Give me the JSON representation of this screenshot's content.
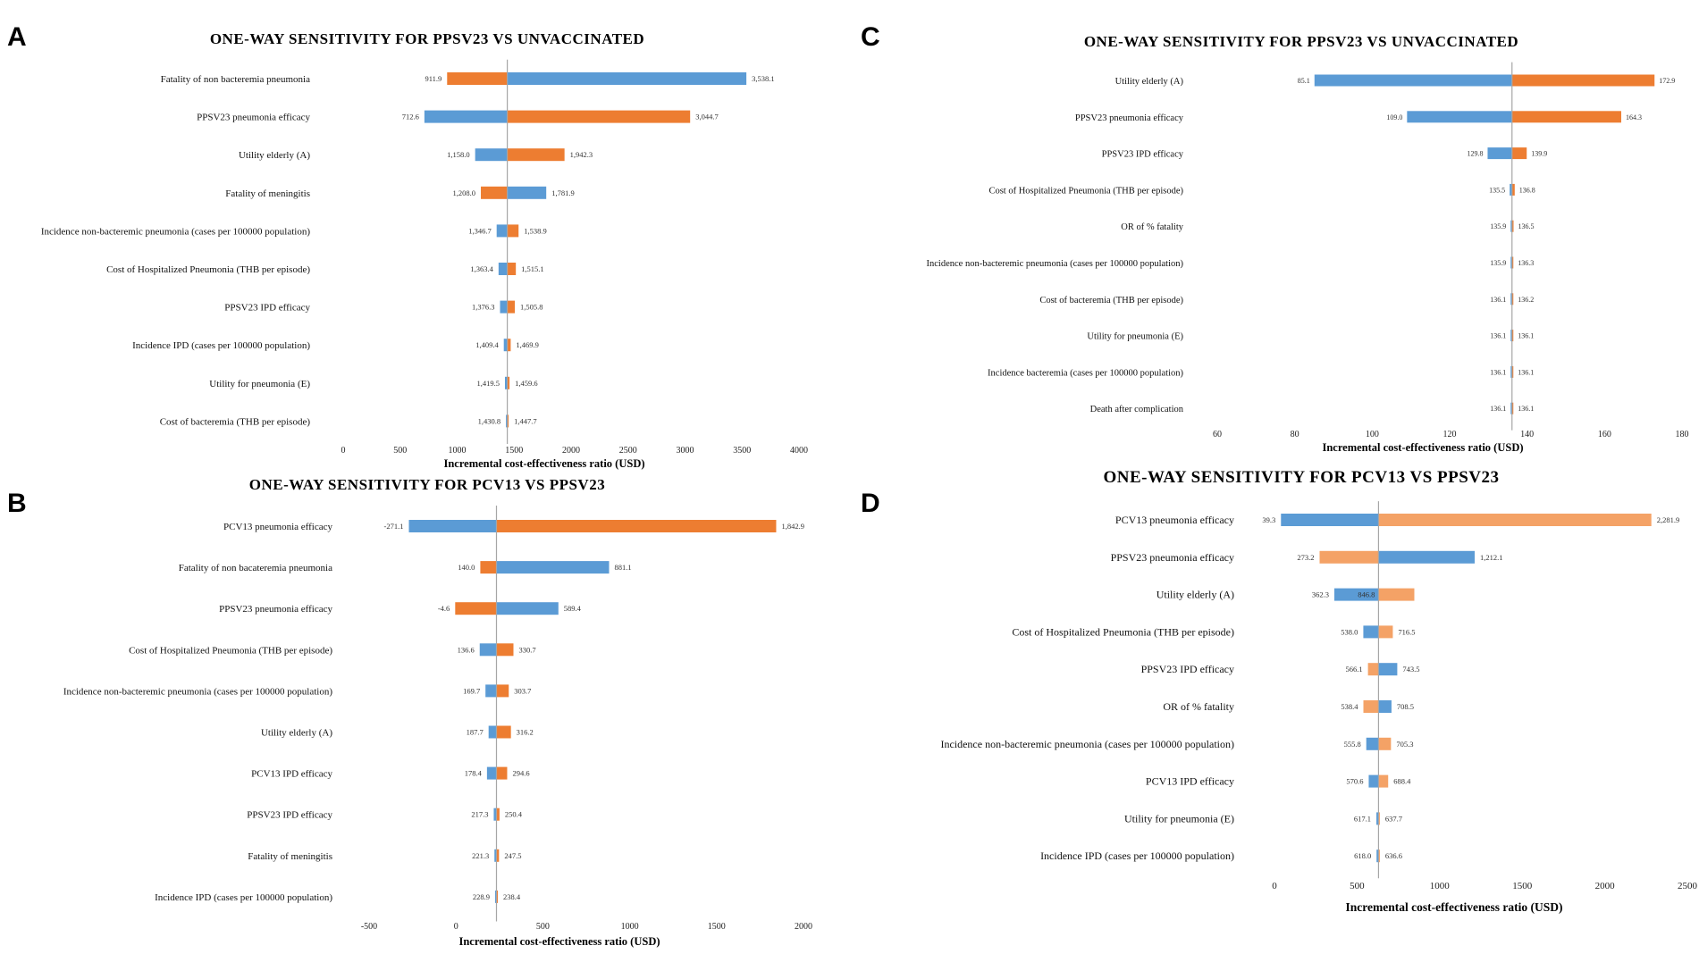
{
  "colors": {
    "blue": "#5B9BD5",
    "orange": "#ED7D31",
    "orange_light": "#F4A266",
    "baseline": "#A6A6A6"
  },
  "chart_data": [
    {
      "panel": "A",
      "type": "tornado",
      "title": "ONE-WAY SENSITIVITY FOR PPSV23 VS UNVACCINATED",
      "xlabel": "Incremental cost-effectiveness ratio (USD)",
      "xlim": [
        0,
        4000
      ],
      "xticks": [
        0,
        500,
        1000,
        1500,
        2000,
        2500,
        3000,
        3500,
        4000
      ],
      "xtick_labels": [
        "0",
        "500",
        "1000",
        "1500",
        "2000",
        "2500",
        "3000",
        "3500",
        "4000"
      ],
      "base": 1440,
      "rows": [
        {
          "label": "Fatality of non bacteremia pneumonia",
          "left": 911.9,
          "right": 3538.1,
          "left_label": "911.9",
          "right_label": "3,538.1",
          "left_color": "orange",
          "right_color": "blue"
        },
        {
          "label": "PPSV23 pneumonia efficacy",
          "left": 712.6,
          "right": 3044.7,
          "left_label": "712.6",
          "right_label": "3,044.7",
          "left_color": "blue",
          "right_color": "orange"
        },
        {
          "label": "Utility elderly (A)",
          "left": 1158.0,
          "right": 1942.3,
          "left_label": "1,158.0",
          "right_label": "1,942.3",
          "left_color": "blue",
          "right_color": "orange"
        },
        {
          "label": "Fatality of meningitis",
          "left": 1208.0,
          "right": 1781.9,
          "left_label": "1,208.0",
          "right_label": "1,781.9",
          "left_color": "orange",
          "right_color": "blue"
        },
        {
          "label": "Incidence non-bacteremic pneumonia (cases per 100000 population)",
          "left": 1346.7,
          "right": 1538.9,
          "left_label": "1,346.7",
          "right_label": "1,538.9",
          "left_color": "blue",
          "right_color": "orange"
        },
        {
          "label": "Cost of Hospitalized Pneumonia (THB per episode)",
          "left": 1363.4,
          "right": 1515.1,
          "left_label": "1,363.4",
          "right_label": "1,515.1",
          "left_color": "blue",
          "right_color": "orange"
        },
        {
          "label": "PPSV23 IPD efficacy",
          "left": 1376.3,
          "right": 1505.8,
          "left_label": "1,376.3",
          "right_label": "1,505.8",
          "left_color": "blue",
          "right_color": "orange"
        },
        {
          "label": "Incidence IPD (cases per 100000 population)",
          "left": 1409.4,
          "right": 1469.9,
          "left_label": "1,409.4",
          "right_label": "1,469.9",
          "left_color": "blue",
          "right_color": "orange"
        },
        {
          "label": "Utility for pneumonia (E)",
          "left": 1419.5,
          "right": 1459.6,
          "left_label": "1,419.5",
          "right_label": "1,459.6",
          "left_color": "blue",
          "right_color": "orange"
        },
        {
          "label": "Cost of bacteremia (THB per episode)",
          "left": 1430.8,
          "right": 1447.7,
          "left_label": "1,430.8",
          "right_label": "1,447.7",
          "left_color": "blue",
          "right_color": "orange"
        }
      ]
    },
    {
      "panel": "B",
      "type": "tornado",
      "title": "ONE-WAY SENSITIVITY FOR PCV13 VS PPSV23",
      "xlabel": "Incremental cost-effectiveness ratio (USD)",
      "xlim": [
        -500,
        2000
      ],
      "xticks": [
        -500,
        0,
        500,
        1000,
        1500,
        2000
      ],
      "xtick_labels": [
        "-500",
        "0",
        "500",
        "1000",
        "1500",
        "2000"
      ],
      "base": 233,
      "rows": [
        {
          "label": "PCV13 pneumonia efficacy",
          "left": -271.1,
          "right": 1842.9,
          "left_label": "-271.1",
          "right_label": "1,842.9",
          "left_color": "blue",
          "right_color": "orange"
        },
        {
          "label": "Fatality of non bacateremia pneumonia",
          "left": 140.0,
          "right": 881.1,
          "left_label": "140.0",
          "right_label": "881.1",
          "left_color": "orange",
          "right_color": "blue"
        },
        {
          "label": "PPSV23 pneumonia efficacy",
          "left": -4.6,
          "right": 589.4,
          "left_label": "-4.6",
          "right_label": "589.4",
          "left_color": "orange",
          "right_color": "blue"
        },
        {
          "label": "Cost of Hospitalized Pneumonia (THB per episode)",
          "left": 136.6,
          "right": 330.7,
          "left_label": "136.6",
          "right_label": "330.7",
          "left_color": "blue",
          "right_color": "orange"
        },
        {
          "label": "Incidence non-bacteremic pneumonia (cases per 100000 population)",
          "left": 169.7,
          "right": 303.7,
          "left_label": "169.7",
          "right_label": "303.7",
          "left_color": "blue",
          "right_color": "orange"
        },
        {
          "label": "Utility elderly (A)",
          "left": 187.7,
          "right": 316.2,
          "left_label": "187.7",
          "right_label": "316.2",
          "left_color": "blue",
          "right_color": "orange"
        },
        {
          "label": "PCV13 IPD efficacy",
          "left": 178.4,
          "right": 294.6,
          "left_label": "178.4",
          "right_label": "294.6",
          "left_color": "blue",
          "right_color": "orange"
        },
        {
          "label": "PPSV23 IPD efficacy",
          "left": 217.3,
          "right": 250.4,
          "left_label": "217.3",
          "right_label": "250.4",
          "left_color": "blue",
          "right_color": "orange"
        },
        {
          "label": "Fatality of meningitis",
          "left": 221.3,
          "right": 247.5,
          "left_label": "221.3",
          "right_label": "247.5",
          "left_color": "blue",
          "right_color": "orange"
        },
        {
          "label": "Incidence IPD (cases per 100000 population)",
          "left": 228.9,
          "right": 238.4,
          "left_label": "228.9",
          "right_label": "238.4",
          "left_color": "blue",
          "right_color": "orange"
        }
      ]
    },
    {
      "panel": "C",
      "type": "tornado",
      "title": "ONE-WAY SENSITIVITY FOR PPSV23 VS UNVACCINATED",
      "xlabel": "Incremental cost-effectiveness ratio (USD)",
      "xlim": [
        60,
        180
      ],
      "xticks": [
        60,
        80,
        100,
        120,
        140,
        160,
        180
      ],
      "xtick_labels": [
        "60",
        "80",
        "100",
        "120",
        "140",
        "160",
        "180"
      ],
      "base": 136.1,
      "rows": [
        {
          "label": "Utility elderly (A)",
          "left": 85.1,
          "right": 172.9,
          "left_label": "85.1",
          "right_label": "172.9",
          "left_color": "blue",
          "right_color": "orange"
        },
        {
          "label": "PPSV23 pneumonia efficacy",
          "left": 109.0,
          "right": 164.3,
          "left_label": "109.0",
          "right_label": "164.3",
          "left_color": "blue",
          "right_color": "orange"
        },
        {
          "label": "PPSV23 IPD efficacy",
          "left": 129.8,
          "right": 139.9,
          "left_label": "129.8",
          "right_label": "139.9",
          "left_color": "blue",
          "right_color": "orange"
        },
        {
          "label": "Cost of Hospitalized Pneumonia (THB per episode)",
          "left": 135.5,
          "right": 136.8,
          "left_label": "135.5",
          "right_label": "136.8",
          "left_color": "blue",
          "right_color": "orange"
        },
        {
          "label": "OR of % fatality",
          "left": 135.9,
          "right": 136.5,
          "left_label": "135.9",
          "right_label": "136.5",
          "left_color": "blue",
          "right_color": "orange"
        },
        {
          "label": "Incidence non-bacteremic pneumonia (cases per 100000 population)",
          "left": 135.9,
          "right": 136.3,
          "left_label": "135.9",
          "right_label": "136.3",
          "left_color": "blue",
          "right_color": "orange"
        },
        {
          "label": "Cost of bacteremia (THB per episode)",
          "left": 136.1,
          "right": 136.2,
          "left_label": "136.1",
          "right_label": "136.2",
          "left_color": "blue",
          "right_color": "orange"
        },
        {
          "label": "Utility for pneumonia (E)",
          "left": 136.1,
          "right": 136.1,
          "left_label": "136.1",
          "right_label": "136.1",
          "left_color": "blue",
          "right_color": "orange"
        },
        {
          "label": "Incidence bacteremia (cases per 100000 population)",
          "left": 136.1,
          "right": 136.1,
          "left_label": "136.1",
          "right_label": "136.1",
          "left_color": "blue",
          "right_color": "orange"
        },
        {
          "label": "Death after complication",
          "left": 136.1,
          "right": 136.1,
          "left_label": "136.1",
          "right_label": "136.1",
          "left_color": "blue",
          "right_color": "orange"
        }
      ]
    },
    {
      "panel": "D",
      "type": "tornado",
      "title": "ONE-WAY SENSITIVITY FOR PCV13 VS PPSV23",
      "xlabel": "Incremental cost-effectiveness ratio (USD)",
      "xlim": [
        0,
        2500
      ],
      "xticks": [
        0,
        500,
        1000,
        1500,
        2000,
        2500
      ],
      "xtick_labels": [
        "0",
        "500",
        "1000",
        "1500",
        "2000",
        "2500"
      ],
      "base": 630,
      "rows": [
        {
          "label": "PCV13 pneumonia efficacy",
          "left": 39.3,
          "right": 2281.9,
          "left_label": "39.3",
          "right_label": "2,281.9",
          "left_color": "blue",
          "right_color": "orange_light"
        },
        {
          "label": "PPSV23 pneumonia efficacy",
          "left": 273.2,
          "right": 1212.1,
          "left_label": "273.2",
          "right_label": "1,212.1",
          "left_color": "orange_light",
          "right_color": "blue"
        },
        {
          "label": "Utility elderly (A)",
          "left": 362.3,
          "right": 846.8,
          "left_label": "362.3",
          "right_label": "846.8",
          "left_color": "blue",
          "right_color": "orange_light",
          "right_label_inside": true
        },
        {
          "label": "Cost of Hospitalized Pneumonia (THB per episode)",
          "left": 538.0,
          "right": 716.5,
          "left_label": "538.0",
          "right_label": "716.5",
          "left_color": "blue",
          "right_color": "orange_light"
        },
        {
          "label": "PPSV23 IPD efficacy",
          "left": 566.1,
          "right": 743.5,
          "left_label": "566.1",
          "right_label": "743.5",
          "left_color": "orange_light",
          "right_color": "blue"
        },
        {
          "label": "OR of % fatality",
          "left": 538.4,
          "right": 708.5,
          "left_label": "538.4",
          "right_label": "708.5",
          "left_color": "orange_light",
          "right_color": "blue"
        },
        {
          "label": "Incidence non-bacteremic pneumonia (cases per 100000 population)",
          "left": 555.8,
          "right": 705.3,
          "left_label": "555.8",
          "right_label": "705.3",
          "left_color": "blue",
          "right_color": "orange_light"
        },
        {
          "label": "PCV13 IPD efficacy",
          "left": 570.6,
          "right": 688.4,
          "left_label": "570.6",
          "right_label": "688.4",
          "left_color": "blue",
          "right_color": "orange_light"
        },
        {
          "label": "Utility for pneumonia (E)",
          "left": 617.1,
          "right": 637.7,
          "left_label": "617.1",
          "right_label": "637.7",
          "left_color": "blue",
          "right_color": "orange_light"
        },
        {
          "label": "Incidence IPD (cases per 100000 population)",
          "left": 618.0,
          "right": 636.6,
          "left_label": "618.0",
          "right_label": "636.6",
          "left_color": "blue",
          "right_color": "orange_light"
        }
      ]
    }
  ]
}
